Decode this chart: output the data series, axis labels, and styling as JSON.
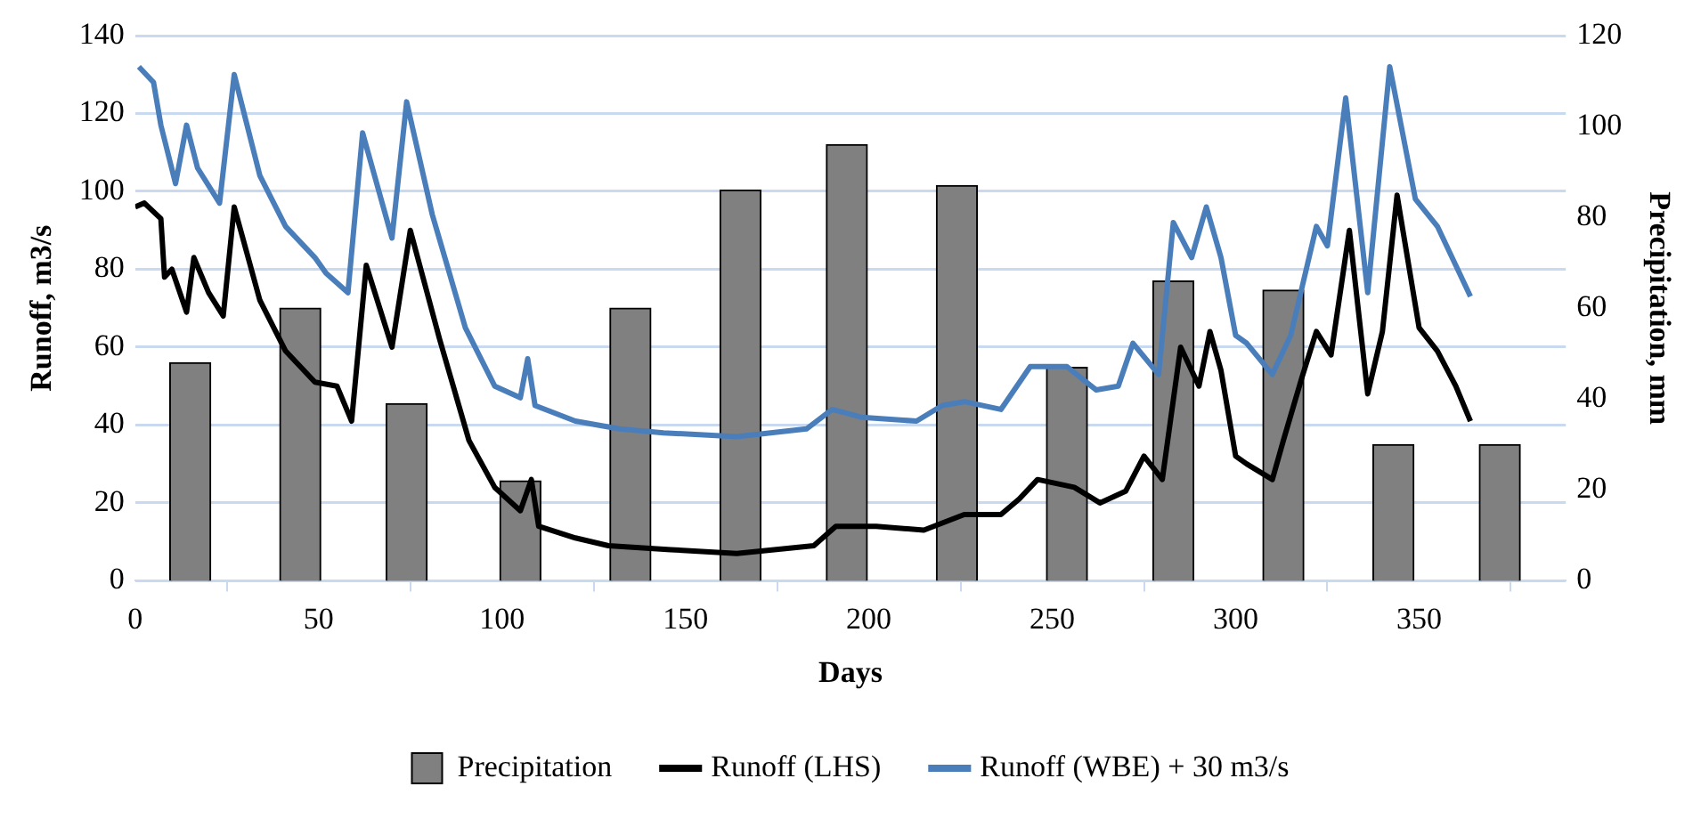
{
  "chart_data": {
    "type": "line",
    "xlabel": "Days",
    "ylabel": "Runoff, m3/s",
    "y2label": "Precipitation, mm",
    "xlim": [
      0,
      390
    ],
    "xticks": [
      0,
      50,
      100,
      150,
      200,
      250,
      300,
      350
    ],
    "ylim": [
      0,
      140
    ],
    "yticks": [
      0,
      20,
      40,
      60,
      80,
      100,
      120,
      140
    ],
    "y2lim": [
      0,
      120
    ],
    "y2ticks": [
      0,
      20,
      40,
      60,
      80,
      100,
      120
    ],
    "grid": "y",
    "legend": "bottom",
    "series": [
      {
        "name": "Precipitation",
        "type": "bar",
        "axis": "y2",
        "color": "#808080",
        "x": [
          15,
          45,
          74,
          105,
          135,
          165,
          194,
          224,
          254,
          283,
          313,
          343,
          372
        ],
        "values": [
          48,
          60,
          39,
          22,
          60,
          86,
          96,
          87,
          47,
          66,
          64,
          30,
          30
        ]
      },
      {
        "name": "Runoff (LHS)",
        "color": "#000000",
        "x": [
          0,
          2.5,
          7,
          8,
          10,
          14,
          16,
          20,
          24,
          27,
          34,
          41,
          49,
          55,
          59,
          63,
          70,
          75,
          83,
          91,
          98,
          105,
          108,
          110,
          120,
          129,
          146,
          164,
          185,
          191,
          202,
          215,
          226,
          236,
          241,
          246,
          256,
          263,
          270,
          275,
          280,
          285,
          290,
          293,
          296,
          300,
          303,
          310,
          313,
          318,
          322,
          326,
          331,
          336,
          340,
          344,
          350,
          355,
          360,
          364
        ],
        "values": [
          96,
          97,
          93,
          78,
          80,
          69,
          83,
          74,
          68,
          96,
          72,
          59,
          51,
          50,
          41,
          81,
          60,
          90,
          62,
          36,
          24,
          18,
          26,
          14,
          11,
          9,
          8,
          7,
          9,
          14,
          14,
          13,
          17,
          17,
          21,
          26,
          24,
          20,
          23,
          32,
          26,
          60,
          50,
          64,
          54,
          32,
          30,
          26,
          36,
          52,
          64,
          58,
          90,
          48,
          64,
          99,
          65,
          59,
          50,
          41
        ]
      },
      {
        "name": "Runoff (WBE) + 30 m3/s",
        "color": "#4a7ebb",
        "x": [
          1,
          5,
          7,
          11,
          14,
          17,
          23,
          27,
          34,
          41,
          49,
          52,
          58,
          62,
          70,
          74,
          81,
          90,
          98,
          105,
          107,
          109,
          120,
          132,
          144,
          164,
          183,
          190,
          198,
          213,
          220,
          226,
          236,
          244,
          254,
          262,
          268,
          272,
          279,
          283,
          288,
          292,
          296,
          300,
          303,
          310,
          315,
          322,
          325,
          330,
          336,
          342,
          349,
          355,
          360,
          364
        ],
        "values": [
          132,
          128,
          117,
          102,
          117,
          106,
          97,
          130,
          104,
          91,
          83,
          79,
          74,
          115,
          88,
          123,
          94,
          65,
          50,
          47,
          57,
          45,
          41,
          39,
          38,
          37,
          39,
          44,
          42,
          41,
          45,
          46,
          44,
          55,
          55,
          49,
          50,
          61,
          53,
          92,
          83,
          96,
          83,
          63,
          61,
          53,
          63,
          91,
          86,
          124,
          74,
          132,
          98,
          91,
          81,
          73
        ]
      }
    ]
  }
}
